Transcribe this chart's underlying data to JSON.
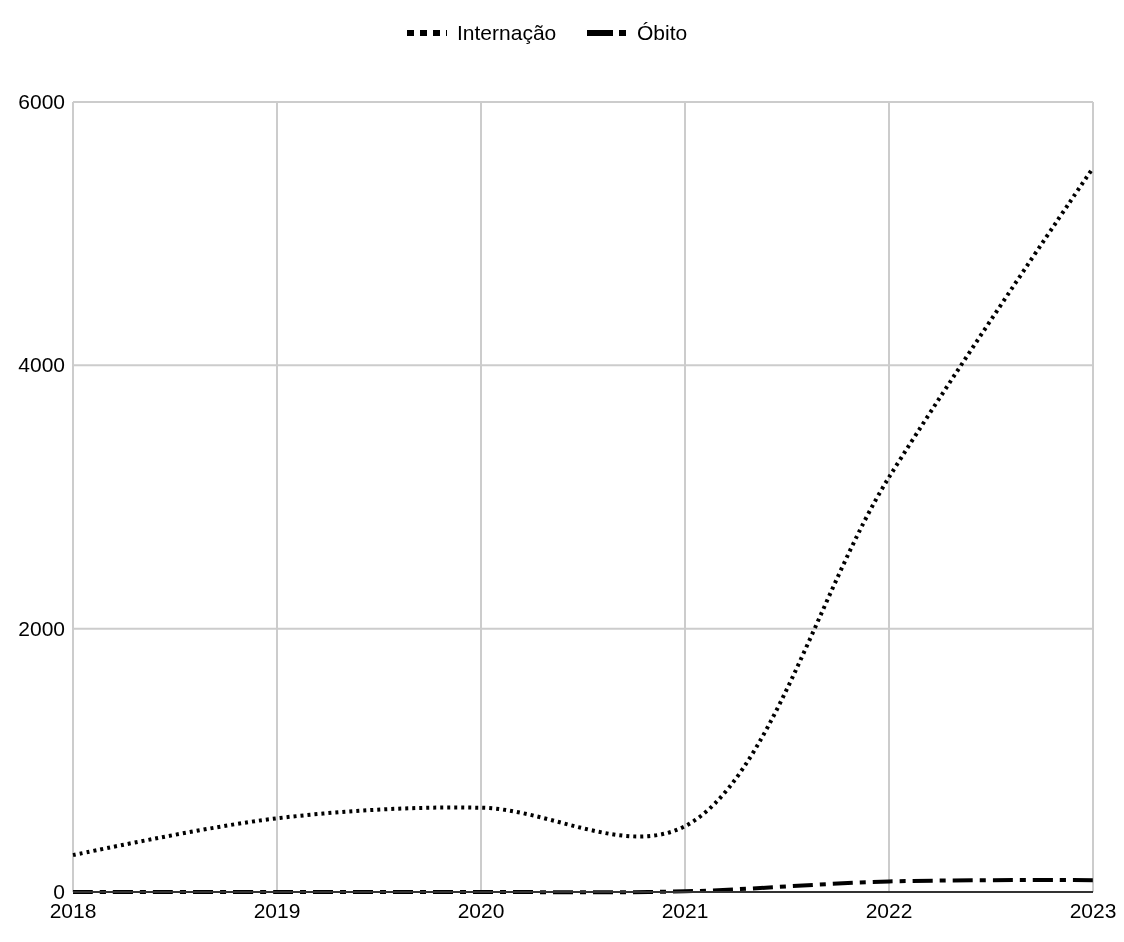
{
  "chart_data": {
    "type": "line",
    "x": [
      2018,
      2019,
      2020,
      2021,
      2022,
      2023
    ],
    "series": [
      {
        "name": "Internação",
        "color": "#000000",
        "line_style": "dotted",
        "values": [
          280,
          560,
          640,
          500,
          3150,
          5500
        ]
      },
      {
        "name": "Óbito",
        "color": "#000000",
        "line_style": "dashed",
        "values": [
          0,
          0,
          0,
          5,
          80,
          90
        ]
      }
    ],
    "xlim": [
      2018,
      2023
    ],
    "xticks": [
      2018,
      2019,
      2020,
      2021,
      2022,
      2023
    ],
    "ylim": [
      0,
      6000
    ],
    "yticks": [
      0,
      2000,
      4000,
      6000
    ],
    "grid": true,
    "legend": "top",
    "marker": "none"
  }
}
